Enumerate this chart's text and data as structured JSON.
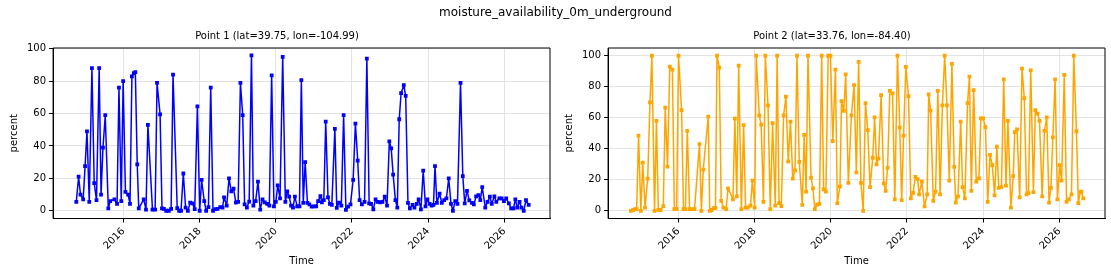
{
  "chart_data": [
    {
      "type": "line",
      "title": "Point 1 (lat=39.75, lon=-104.99)",
      "xlabel": "Time",
      "ylabel": "percent",
      "annotations": [
        "moisture_availability_0m_underground"
      ],
      "color": "#0000ff",
      "marker": "square",
      "grid": true,
      "xlim": [
        2014.15,
        2027.2
      ],
      "xticks": [
        2016,
        2018,
        2020,
        2022,
        2024,
        2026
      ],
      "ylim": [
        -4.8,
        100.5
      ],
      "yticks": [
        0,
        20,
        40,
        60,
        80,
        100
      ],
      "x": [
        2014.76,
        2014.82,
        2014.87,
        2014.94,
        2014.99,
        2015.04,
        2015.1,
        2015.17,
        2015.23,
        2015.29,
        2015.36,
        2015.41,
        2015.46,
        2015.52,
        2015.6,
        2015.65,
        2015.76,
        2015.83,
        2015.88,
        2015.94,
        2015.99,
        2016.05,
        2016.12,
        2016.17,
        2016.22,
        2016.27,
        2016.31,
        2016.36,
        2016.4,
        2016.53,
        2016.59,
        2016.64,
        2016.76,
        2016.83,
        2016.88,
        2016.96,
        2017.01,
        2017.06,
        2017.12,
        2017.19,
        2017.25,
        2017.3,
        2017.41,
        2017.46,
        2017.51,
        2017.57,
        2017.63,
        2017.69,
        2017.75,
        2017.81,
        2017.87,
        2017.94,
        2018.0,
        2018.05,
        2018.12,
        2018.17,
        2018.23,
        2018.29,
        2018.35,
        2018.41,
        2018.47,
        2018.54,
        2018.6,
        2018.64,
        2018.71,
        2018.77,
        2018.83,
        2018.89,
        2018.95,
        2019.01,
        2019.07,
        2019.13,
        2019.18,
        2019.24,
        2019.3,
        2019.36,
        2019.41,
        2019.47,
        2019.53,
        2019.59,
        2019.65,
        2019.71,
        2019.77,
        2019.83,
        2019.89,
        2019.95,
        2020.0,
        2020.05,
        2020.11,
        2020.18,
        2020.25,
        2020.3,
        2020.35,
        2020.4,
        2020.45,
        2020.5,
        2020.56,
        2020.62,
        2020.67,
        2020.72,
        2020.77,
        2020.83,
        2020.88,
        2020.94,
        2021.0,
        2021.06,
        2021.11,
        2021.17,
        2021.21,
        2021.26,
        2021.31,
        2021.37,
        2021.42,
        2021.47,
        2021.55,
        2021.6,
        2021.66,
        2021.72,
        2021.78,
        2021.84,
        2021.9,
        2021.96,
        2022.03,
        2022.09,
        2022.15,
        2022.2,
        2022.26,
        2022.33,
        2022.39,
        2022.45,
        2022.5,
        2022.56,
        2022.62,
        2022.68,
        2022.74,
        2022.8,
        2022.86,
        2022.92,
        2022.98,
        2023.03,
        2023.08,
        2023.14,
        2023.19,
        2023.24,
        2023.29,
        2023.36,
        2023.41,
        2023.47,
        2023.52,
        2023.59,
        2023.64,
        2023.7,
        2023.75,
        2023.81,
        2023.87,
        2023.93,
        2023.98,
        2024.04,
        2024.09,
        2024.14,
        2024.18,
        2024.23,
        2024.3,
        2024.36,
        2024.42,
        2024.48,
        2024.54,
        2024.6,
        2024.65,
        2024.71,
        2024.77,
        2024.85,
        2024.91,
        2024.96,
        2025.02,
        2025.08,
        2025.15,
        2025.2,
        2025.26,
        2025.32,
        2025.37,
        2025.42,
        2025.5,
        2025.56,
        2025.62,
        2025.67,
        2025.74,
        2025.79,
        2025.87,
        2025.93,
        2025.99,
        2026.05,
        2026.12,
        2026.18,
        2026.24,
        2026.29,
        2026.34,
        2026.4,
        2026.45,
        2026.51,
        2026.57,
        2026.64
      ],
      "values": [
        5.5,
        21,
        10,
        7,
        27.5,
        49,
        5.5,
        88,
        17,
        6.6,
        88,
        10,
        39,
        59,
        1.4,
        6,
        7,
        4.3,
        76,
        6,
        80,
        11.6,
        10,
        4.3,
        83,
        85,
        85.6,
        28.7,
        1.4,
        7,
        0.7,
        53,
        0.7,
        0.7,
        79,
        59.5,
        1.4,
        1.1,
        0,
        0,
        1.1,
        84,
        1.6,
        0,
        0,
        23,
        2,
        0,
        5,
        4.6,
        1,
        64.5,
        0,
        19,
        6,
        0,
        2.3,
        76,
        0,
        1,
        1.1,
        2.3,
        2,
        8.2,
        3.2,
        20,
        12,
        13.7,
        5,
        5.5,
        79,
        59,
        3.9,
        2,
        5.7,
        96,
        3.2,
        6,
        18,
        0.7,
        7,
        5.2,
        4.3,
        3.2,
        83.6,
        2.7,
        5.5,
        15.7,
        7.7,
        95,
        5.5,
        12,
        8.7,
        3.2,
        2,
        8.7,
        2.7,
        2.7,
        80.6,
        4.8,
        30,
        4.8,
        3.9,
        2.5,
        2.7,
        2.7,
        6,
        9,
        5.2,
        6.6,
        55,
        8.2,
        4.3,
        3.6,
        50.6,
        1.8,
        5,
        3.2,
        59,
        0.5,
        2.5,
        3.9,
        19,
        53.8,
        31,
        6.6,
        3.9,
        5.5,
        94,
        4.6,
        4.3,
        0.9,
        7,
        5.5,
        5.2,
        5.5,
        8.7,
        3.2,
        42.8,
        38.5,
        22.3,
        6.6,
        2,
        56.5,
        72.7,
        77.5,
        71,
        4.8,
        1.4,
        3.6,
        2,
        4.3,
        7,
        0.9,
        24.8,
        2.7,
        7,
        4.3,
        3.2,
        3.6,
        27.5,
        4.8,
        10.5,
        4.8,
        6.6,
        7.7,
        20,
        4.3,
        0,
        6,
        4.3,
        79,
        21.4,
        4.6,
        12.3,
        6.4,
        4.8,
        3.9,
        8.9,
        9.6,
        6.6,
        14.6,
        2,
        5.5,
        8.7,
        4.3,
        8.9,
        5.5,
        7.7,
        7.7,
        6,
        7.7,
        4.6,
        1.4,
        1.4,
        7,
        2,
        5.5,
        2,
        0,
        6.6,
        3.6
      ]
    },
    {
      "type": "line",
      "title": "Point 2 (lat=33.76, lon=-84.40)",
      "xlabel": "Time",
      "ylabel": "percent",
      "color": "#ffa500",
      "marker": "square",
      "grid": true,
      "xlim": [
        2014.15,
        2027.2
      ],
      "xticks": [
        2016,
        2018,
        2020,
        2022,
        2024,
        2026
      ],
      "ylim": [
        -5,
        105
      ],
      "yticks": [
        0,
        20,
        40,
        60,
        80,
        100
      ],
      "x": [
        2014.75,
        2014.81,
        2014.86,
        2014.9,
        2014.95,
        2015.01,
        2015.06,
        2015.12,
        2015.19,
        2015.25,
        2015.3,
        2015.37,
        2015.42,
        2015.47,
        2015.53,
        2015.6,
        2015.65,
        2015.71,
        2015.77,
        2015.84,
        2015.89,
        2015.95,
        2016.0,
        2016.08,
        2016.13,
        2016.18,
        2016.23,
        2016.29,
        2016.35,
        2016.42,
        2016.55,
        2016.6,
        2016.65,
        2016.78,
        2016.82,
        2016.87,
        2016.93,
        2016.97,
        2017.01,
        2017.07,
        2017.12,
        2017.18,
        2017.25,
        2017.3,
        2017.43,
        2017.48,
        2017.53,
        2017.58,
        2017.65,
        2017.71,
        2017.76,
        2017.82,
        2017.89,
        2017.94,
        2018.0,
        2018.04,
        2018.12,
        2018.17,
        2018.23,
        2018.28,
        2018.35,
        2018.41,
        2018.47,
        2018.54,
        2018.59,
        2018.64,
        2018.7,
        2018.76,
        2018.82,
        2018.88,
        2018.94,
        2019.0,
        2019.06,
        2019.11,
        2019.17,
        2019.25,
        2019.3,
        2019.35,
        2019.4,
        2019.48,
        2019.53,
        2019.58,
        2019.64,
        2019.7,
        2019.76,
        2019.81,
        2019.87,
        2019.93,
        2019.99,
        2020.05,
        2020.12,
        2020.17,
        2020.24,
        2020.28,
        2020.34,
        2020.39,
        2020.46,
        2020.54,
        2020.61,
        2020.67,
        2020.73,
        2020.79,
        2020.85,
        2020.91,
        2020.97,
        2021.03,
        2021.1,
        2021.15,
        2021.2,
        2021.25,
        2021.32,
        2021.39,
        2021.44,
        2021.49,
        2021.55,
        2021.62,
        2021.68,
        2021.75,
        2021.81,
        2021.86,
        2021.91,
        2021.97,
        2022.04,
        2022.1,
        2022.16,
        2022.22,
        2022.28,
        2022.32,
        2022.39,
        2022.46,
        2022.53,
        2022.57,
        2022.62,
        2022.69,
        2022.75,
        2022.81,
        2022.87,
        2022.93,
        2022.99,
        2023.05,
        2023.11,
        2023.18,
        2023.24,
        2023.28,
        2023.34,
        2023.41,
        2023.46,
        2023.52,
        2023.59,
        2023.64,
        2023.69,
        2023.75,
        2023.82,
        2023.89,
        2023.94,
        2024.0,
        2024.06,
        2024.12,
        2024.18,
        2024.24,
        2024.3,
        2024.36,
        2024.41,
        2024.48,
        2024.54,
        2024.6,
        2024.65,
        2024.73,
        2024.79,
        2024.83,
        2024.89,
        2024.96,
        2025.02,
        2025.08,
        2025.14,
        2025.19,
        2025.25,
        2025.32,
        2025.37,
        2025.43,
        2025.48,
        2025.55,
        2025.61,
        2025.67,
        2025.73,
        2025.78,
        2025.83,
        2025.89,
        2025.95,
        2026.01,
        2026.06,
        2026.13,
        2026.19,
        2026.25,
        2026.32,
        2026.38,
        2026.45,
        2026.5,
        2026.55,
        2026.58,
        2026.63
      ],
      "values": [
        0,
        0.5,
        1,
        1,
        48.5,
        0,
        31,
        2,
        20.7,
        70,
        100,
        0,
        58,
        0.5,
        0.5,
        3,
        66.5,
        28.5,
        93,
        91,
        1,
        1,
        100,
        65,
        1,
        1,
        51.5,
        1,
        1,
        1,
        43,
        0,
        26.6,
        60.8,
        0,
        0.5,
        1.7,
        1.9,
        100,
        92.4,
        6.4,
        2,
        1,
        14.5,
        7.4,
        59.4,
        9.3,
        93.6,
        1,
        55.3,
        2,
        2,
        3.3,
        19.5,
        2,
        100,
        61.5,
        55.6,
        5.7,
        100,
        68,
        1,
        56.5,
        3.3,
        100,
        5,
        3,
        61.5,
        73.6,
        31.8,
        57.5,
        20.7,
        26,
        100,
        31.6,
        3.8,
        49,
        12.4,
        100,
        21.4,
        14.5,
        1,
        4,
        4.5,
        100,
        13.8,
        12.4,
        100,
        100,
        45,
        91,
        5,
        15.7,
        70.8,
        64.4,
        88,
        18,
        61.5,
        81,
        24.7,
        96,
        18,
        0,
        69.4,
        52,
        15.2,
        34.2,
        60.3,
        30,
        33.7,
        74.6,
        17.6,
        12.8,
        27.6,
        77.4,
        75.8,
        7.4,
        100,
        53.7,
        6.9,
        48.5,
        92.9,
        73.9,
        8,
        11.6,
        21.9,
        20.4,
        10.5,
        18.8,
        2.9,
        10.5,
        75,
        64.6,
        6.4,
        12.4,
        77.4,
        10.5,
        68,
        100,
        68,
        19.5,
        94.8,
        28.3,
        5.2,
        9.3,
        57.5,
        15.2,
        8,
        69.4,
        86.5,
        12.8,
        77.9,
        18.8,
        20.9,
        59.6,
        59.6,
        53.9,
        5.7,
        36.1,
        29.5,
        10,
        41.3,
        14.7,
        15.2,
        84.8,
        16.2,
        58,
        2.1,
        22.3,
        50.8,
        52.5,
        8.6,
        91.7,
        72.7,
        10.5,
        11.4,
        90.5,
        12.1,
        65,
        62.7,
        58,
        9.3,
        51.5,
        60.3,
        5.2,
        14.7,
        47.3,
        84.8,
        7.4,
        29.5,
        19.5,
        87.6,
        5.7,
        7.4,
        10.5,
        100,
        51.3,
        5,
        12.1,
        12.4,
        8
      ]
    }
  ]
}
